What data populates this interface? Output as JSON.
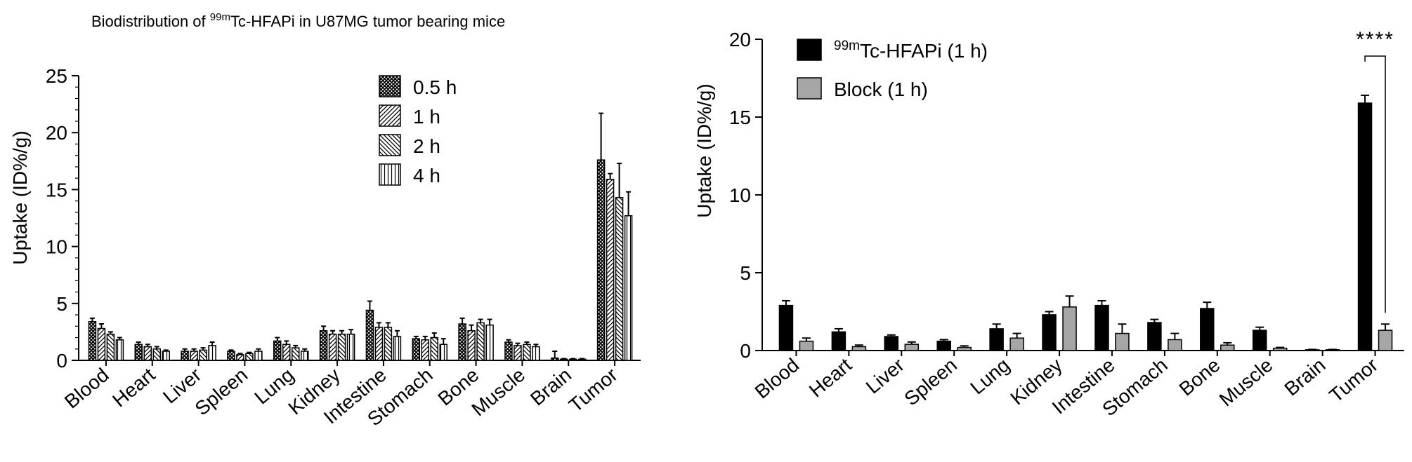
{
  "chart_data": [
    {
      "type": "bar",
      "title_prefix": "Biodistribution of ",
      "title_sup": "99m",
      "title_rest": "Tc-HFAPi in U87MG tumor bearing mice",
      "ylabel": "Uptake (ID%/g)",
      "xlabel": "",
      "ylim": [
        0,
        25
      ],
      "yticks": [
        "0",
        "5",
        "10",
        "15",
        "20",
        "25"
      ],
      "grid": false,
      "legend_position": "top-center",
      "categories": [
        "Blood",
        "Heart",
        "Liver",
        "Spleen",
        "Lung",
        "Kidney",
        "Intestine",
        "Stomach",
        "Bone",
        "Muscle",
        "Brain",
        "Tumor"
      ],
      "series": [
        {
          "name": "0.5 h",
          "pattern": "crosshatch",
          "values": [
            3.4,
            1.4,
            0.8,
            0.8,
            1.7,
            2.6,
            4.4,
            1.9,
            3.2,
            1.6,
            0.2,
            17.6
          ],
          "errors": [
            0.3,
            0.2,
            0.2,
            0.1,
            0.3,
            0.4,
            0.8,
            0.2,
            0.5,
            0.2,
            0.6,
            4.1
          ]
        },
        {
          "name": "1 h",
          "pattern": "diag-right",
          "values": [
            2.8,
            1.2,
            0.8,
            0.5,
            1.4,
            2.3,
            2.9,
            1.8,
            2.6,
            1.3,
            0.1,
            15.9
          ],
          "errors": [
            0.4,
            0.2,
            0.2,
            0.1,
            0.3,
            0.3,
            0.4,
            0.3,
            0.5,
            0.2,
            0.05,
            0.5
          ]
        },
        {
          "name": "2 h",
          "pattern": "diag-left",
          "values": [
            2.3,
            1.0,
            0.9,
            0.6,
            1.1,
            2.3,
            2.9,
            2.0,
            3.3,
            1.4,
            0.1,
            14.3
          ],
          "errors": [
            0.2,
            0.2,
            0.2,
            0.1,
            0.2,
            0.3,
            0.4,
            0.4,
            0.3,
            0.2,
            0.05,
            3.0
          ]
        },
        {
          "name": "4 h",
          "pattern": "vertical",
          "values": [
            1.8,
            0.8,
            1.3,
            0.8,
            0.8,
            2.3,
            2.1,
            1.4,
            3.1,
            1.2,
            0.1,
            12.7
          ],
          "errors": [
            0.2,
            0.1,
            0.3,
            0.2,
            0.2,
            0.4,
            0.5,
            0.5,
            0.5,
            0.2,
            0.05,
            2.1
          ]
        }
      ]
    },
    {
      "type": "bar",
      "title": "",
      "ylabel": "Uptake (ID%/g)",
      "xlabel": "",
      "ylim": [
        0,
        20
      ],
      "yticks": [
        "0",
        "5",
        "10",
        "15",
        "20"
      ],
      "grid": false,
      "legend_position": "top-left",
      "categories": [
        "Blood",
        "Heart",
        "Liver",
        "Spleen",
        "Lung",
        "Kidney",
        "Intestine",
        "Stomach",
        "Bone",
        "Muscle",
        "Brain",
        "Tumor"
      ],
      "series": [
        {
          "name_sup": "99m",
          "name": "Tc-HFAPi  (1 h)",
          "color": "#000000",
          "values": [
            2.9,
            1.2,
            0.9,
            0.6,
            1.4,
            2.3,
            2.9,
            1.8,
            2.7,
            1.3,
            0.05,
            15.9
          ],
          "errors": [
            0.3,
            0.2,
            0.1,
            0.1,
            0.3,
            0.2,
            0.3,
            0.2,
            0.4,
            0.2,
            0.02,
            0.5
          ]
        },
        {
          "name": "Block (1 h)",
          "color": "#a6a6a6",
          "values": [
            0.6,
            0.25,
            0.4,
            0.2,
            0.8,
            2.8,
            1.1,
            0.7,
            0.35,
            0.15,
            0.05,
            1.3
          ],
          "errors": [
            0.2,
            0.1,
            0.15,
            0.1,
            0.3,
            0.7,
            0.6,
            0.4,
            0.15,
            0.05,
            0.02,
            0.4
          ]
        }
      ],
      "annotation": {
        "text": "****",
        "between": "Tumor"
      }
    }
  ]
}
